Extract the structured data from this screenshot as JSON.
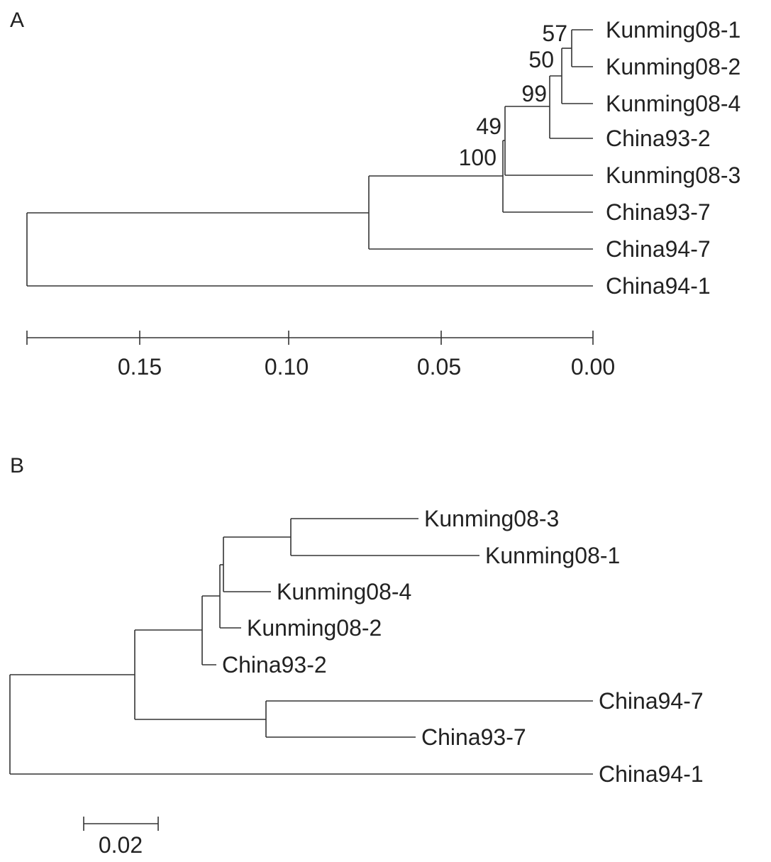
{
  "panel_a": {
    "label": "A",
    "leaves": [
      "Kunming08-1",
      "Kunming08-2",
      "Kunming08-4",
      "China93-2",
      "Kunming08-3",
      "China93-7",
      "China94-7",
      "China94-1"
    ],
    "bootstrap": [
      "57",
      "50",
      "99",
      "49",
      "100"
    ],
    "axis_ticks": [
      "0.15",
      "0.10",
      "0.05",
      "0.00"
    ]
  },
  "panel_b": {
    "label": "B",
    "leaves": [
      "Kunming08-3",
      "Kunming08-1",
      "Kunming08-4",
      "Kunming08-2",
      "China93-2",
      "China94-7",
      "China93-7",
      "China94-1"
    ],
    "scale_label": "0.02"
  }
}
